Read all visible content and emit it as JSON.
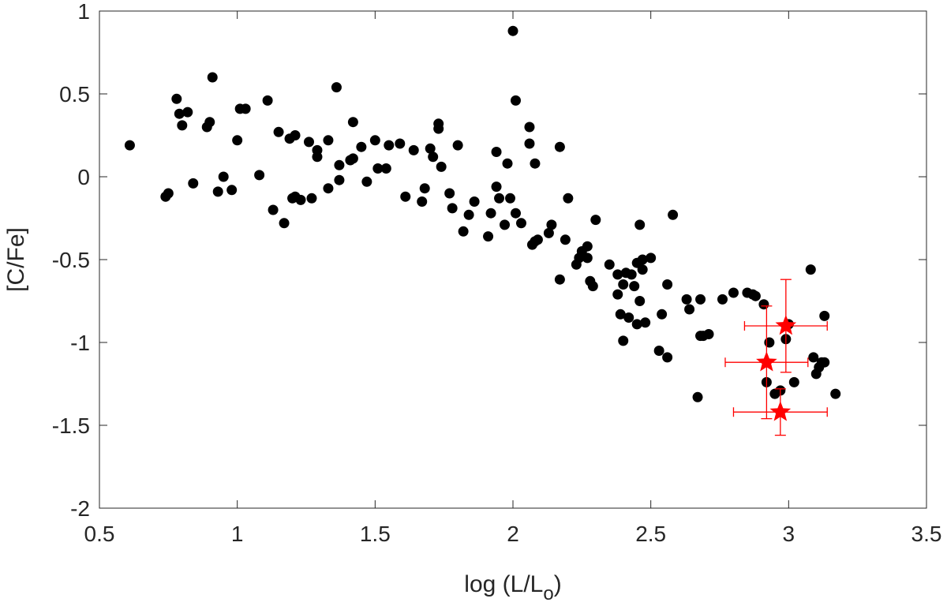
{
  "chart_data": {
    "type": "scatter",
    "title": "",
    "xlabel": "log (L/L",
    "xlabel_subscript": "o",
    "xlabel_close": ")",
    "ylabel": "[C/Fe]",
    "xlim": [
      0.5,
      3.5
    ],
    "ylim": [
      -2,
      1
    ],
    "x_ticks": [
      "0.5",
      "1",
      "1.5",
      "2",
      "2.5",
      "3",
      "3.5"
    ],
    "y_ticks": [
      "-2",
      "-1.5",
      "-1",
      "-0.5",
      "0",
      "0.5",
      "1"
    ],
    "grid": false,
    "colors": {
      "dots": "#000000",
      "stars": "#ff0000",
      "axes": "#262626"
    },
    "series": [
      {
        "marker": "circle",
        "x": [
          0.61,
          0.74,
          0.75,
          0.78,
          0.79,
          0.8,
          0.82,
          0.84,
          0.89,
          0.9,
          0.91,
          0.93,
          0.95,
          0.98,
          1.0,
          1.01,
          1.03,
          1.08,
          1.11,
          1.13,
          1.15,
          1.17,
          1.19,
          1.2,
          1.21,
          1.21,
          1.23,
          1.26,
          1.27,
          1.29,
          1.29,
          1.33,
          1.33,
          1.36,
          1.37,
          1.37,
          1.41,
          1.42,
          1.42,
          1.45,
          1.47,
          1.5,
          1.51,
          1.54,
          1.55,
          1.59,
          1.61,
          1.64,
          1.67,
          1.68,
          1.7,
          1.71,
          1.73,
          1.73,
          1.74,
          1.77,
          1.78,
          1.8,
          1.82,
          1.84,
          1.86,
          1.91,
          1.92,
          1.94,
          1.94,
          1.95,
          1.97,
          1.98,
          1.99,
          2.0,
          2.01,
          2.01,
          2.03,
          2.06,
          2.06,
          2.07,
          2.08,
          2.08,
          2.09,
          2.13,
          2.14,
          2.17,
          2.17,
          2.19,
          2.2,
          2.23,
          2.24,
          2.25,
          2.27,
          2.27,
          2.28,
          2.29,
          2.3,
          2.35,
          2.38,
          2.38,
          2.39,
          2.4,
          2.4,
          2.41,
          2.42,
          2.43,
          2.44,
          2.45,
          2.45,
          2.46,
          2.46,
          2.47,
          2.47,
          2.48,
          2.5,
          2.53,
          2.54,
          2.56,
          2.56,
          2.58,
          2.63,
          2.64,
          2.67,
          2.68,
          2.68,
          2.69,
          2.71,
          2.76,
          2.8,
          2.85,
          2.87,
          2.88,
          2.91,
          2.92,
          2.93,
          2.95,
          2.97,
          2.99,
          3.0,
          3.02,
          3.08,
          3.09,
          3.1,
          3.11,
          3.12,
          3.13,
          3.13,
          3.17
        ],
        "y": [
          0.19,
          -0.12,
          -0.1,
          0.47,
          0.38,
          0.31,
          0.39,
          -0.04,
          0.3,
          0.33,
          0.6,
          -0.09,
          0.0,
          -0.08,
          0.22,
          0.41,
          0.41,
          0.01,
          0.46,
          -0.2,
          0.27,
          -0.28,
          0.23,
          -0.13,
          0.25,
          -0.12,
          -0.14,
          0.21,
          -0.13,
          0.12,
          0.16,
          -0.07,
          0.22,
          0.54,
          0.07,
          -0.02,
          0.1,
          0.11,
          0.33,
          0.18,
          -0.03,
          0.22,
          0.05,
          0.05,
          0.19,
          0.2,
          -0.12,
          0.16,
          -0.15,
          -0.07,
          0.17,
          0.12,
          0.29,
          0.32,
          0.06,
          -0.1,
          -0.19,
          0.19,
          -0.33,
          -0.23,
          -0.15,
          -0.36,
          -0.22,
          -0.06,
          0.15,
          -0.13,
          -0.29,
          0.08,
          -0.13,
          0.88,
          -0.22,
          0.46,
          -0.28,
          0.2,
          0.3,
          -0.41,
          -0.39,
          0.08,
          -0.38,
          -0.34,
          -0.29,
          0.18,
          -0.62,
          -0.38,
          -0.13,
          -0.53,
          -0.49,
          -0.45,
          -0.42,
          -0.49,
          -0.63,
          -0.66,
          -0.26,
          -0.53,
          -0.59,
          -0.71,
          -0.83,
          -0.99,
          -0.65,
          -0.58,
          -0.85,
          -0.59,
          -0.66,
          -0.52,
          -0.89,
          -0.29,
          -0.75,
          -0.56,
          -0.5,
          -0.88,
          -0.49,
          -1.05,
          -0.83,
          -0.65,
          -1.09,
          -0.23,
          -0.74,
          -0.8,
          -1.33,
          -0.96,
          -0.74,
          -0.96,
          -0.95,
          -0.74,
          -0.7,
          -0.7,
          -0.71,
          -0.72,
          -0.77,
          -1.24,
          -1.0,
          -1.31,
          -1.29,
          -0.98,
          -0.89,
          -1.24,
          -0.56,
          -1.09,
          -1.19,
          -1.15,
          -1.12,
          -0.84,
          -1.12,
          -1.31
        ]
      },
      {
        "marker": "star",
        "x": [
          2.92,
          2.97,
          2.99
        ],
        "y": [
          -1.12,
          -1.42,
          -0.9
        ],
        "x_err": [
          0.15,
          0.17,
          0.15
        ],
        "y_err": [
          0.34,
          0.14,
          0.28
        ]
      }
    ]
  }
}
